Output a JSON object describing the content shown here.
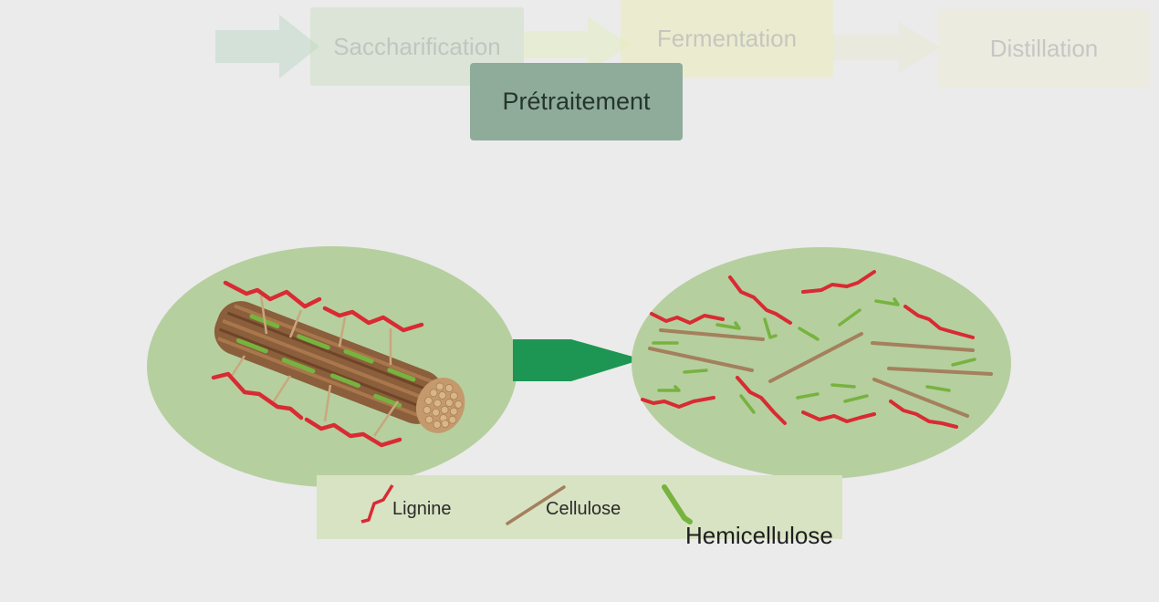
{
  "process_steps": {
    "saccharification": "Saccharification",
    "fermentation": "Fermentation",
    "distillation": "Distillation",
    "pretreatment": "Prétraitement"
  },
  "legend": {
    "lignin": "Lignine",
    "cellulose": "Cellulose",
    "hemicellulose": "Hemicellulose"
  },
  "colors": {
    "background": "#ebebeb",
    "circle_fill": "#b6cf9f",
    "lignin": "#d82b34",
    "cellulose": "#a4805d",
    "hemicellulose": "#76b33f",
    "arrow": "#1e9653",
    "pretreatment_box": "#8fac9b"
  }
}
